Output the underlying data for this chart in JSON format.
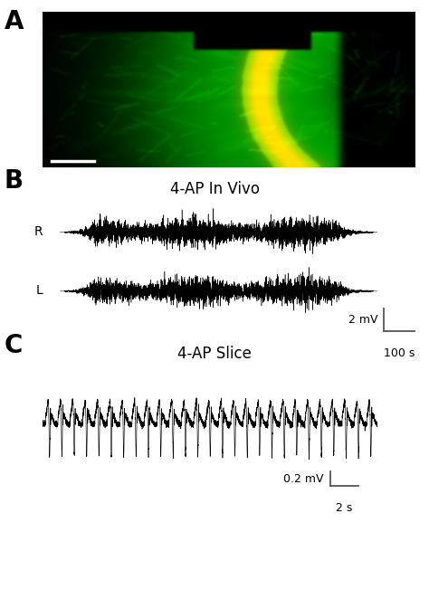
{
  "panel_A_label": "A",
  "panel_B_label": "B",
  "panel_C_label": "C",
  "title_B": "4-AP In Vivo",
  "title_C": "4-AP Slice",
  "scale_B_v": "2 mV",
  "scale_B_t": "100 s",
  "scale_C_v": "0.2 mV",
  "scale_C_t": "2 s",
  "label_R": "R",
  "label_L": "L",
  "bg_color": "#ffffff",
  "trace_color": "#000000",
  "label_fontsize": 20,
  "title_fontsize": 12,
  "scalebar_fontsize": 9,
  "fig_width": 4.74,
  "fig_height": 6.51
}
